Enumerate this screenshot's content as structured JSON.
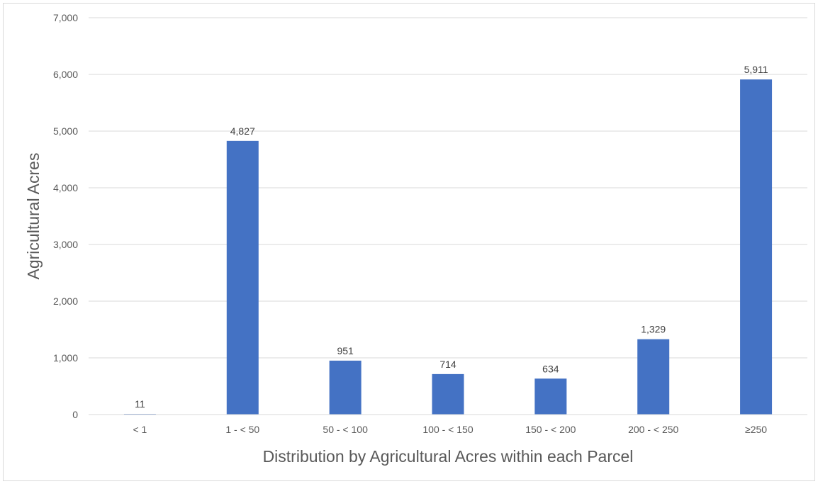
{
  "chart_data": {
    "type": "bar",
    "title": "",
    "xlabel": "Distribution by Agricultural Acres within each Parcel",
    "ylabel": "Agricultural Acres",
    "categories": [
      "< 1",
      "1 - < 50",
      "50 - < 100",
      "100 - < 150",
      "150 - < 200",
      "200 - < 250",
      "≥250"
    ],
    "values": [
      11,
      4827,
      951,
      714,
      634,
      1329,
      5911
    ],
    "value_labels": [
      "11",
      "4,827",
      "951",
      "714",
      "634",
      "1,329",
      "5,911"
    ],
    "ylim": [
      0,
      7000
    ],
    "yticks": [
      0,
      1000,
      2000,
      3000,
      4000,
      5000,
      6000,
      7000
    ],
    "ytick_labels": [
      "0",
      "1,000",
      "2,000",
      "3,000",
      "4,000",
      "5,000",
      "6,000",
      "7,000"
    ],
    "grid": true,
    "legend": "none",
    "bar_color": "#4472C4",
    "grid_color": "#D9D9D9"
  }
}
